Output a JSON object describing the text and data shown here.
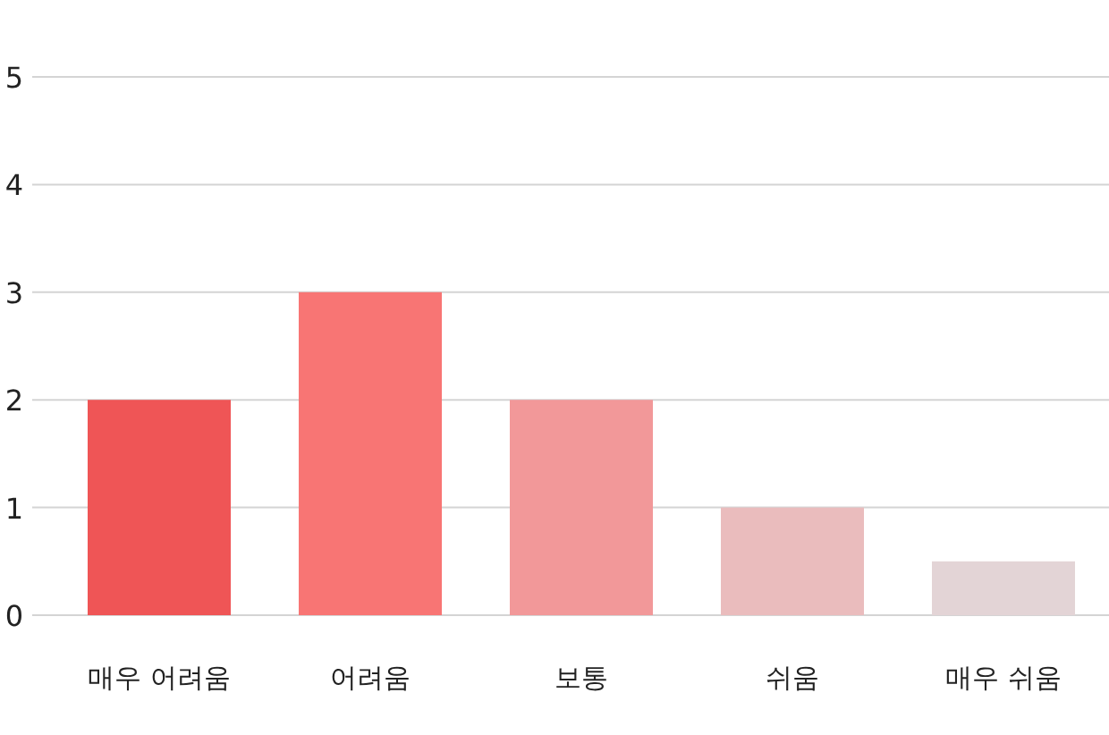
{
  "chart_data": {
    "type": "bar",
    "categories": [
      "매우 어려움",
      "어려움",
      "보통",
      "쉬움",
      "매우 쉬움"
    ],
    "values": [
      2,
      3,
      2,
      1,
      0.5
    ],
    "colors": [
      "#ef5556",
      "#f87574",
      "#f29899",
      "#eabcbd",
      "#e3d4d6"
    ],
    "ylim": [
      0,
      5
    ],
    "yticks": [
      0,
      1,
      2,
      3,
      4,
      5
    ],
    "grid": "y"
  }
}
